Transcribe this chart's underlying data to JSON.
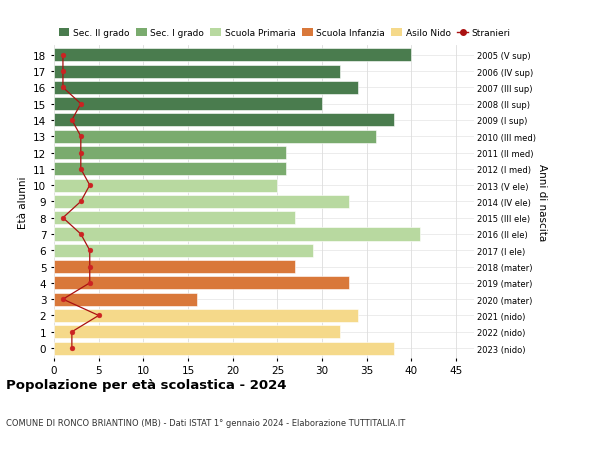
{
  "ages": [
    18,
    17,
    16,
    15,
    14,
    13,
    12,
    11,
    10,
    9,
    8,
    7,
    6,
    5,
    4,
    3,
    2,
    1,
    0
  ],
  "bar_values": [
    40,
    32,
    34,
    30,
    38,
    36,
    26,
    26,
    25,
    33,
    27,
    41,
    29,
    27,
    33,
    16,
    34,
    32,
    38
  ],
  "bar_colors": [
    "#4a7c4e",
    "#4a7c4e",
    "#4a7c4e",
    "#4a7c4e",
    "#4a7c4e",
    "#7aab6e",
    "#7aab6e",
    "#7aab6e",
    "#b8d9a0",
    "#b8d9a0",
    "#b8d9a0",
    "#b8d9a0",
    "#b8d9a0",
    "#d9783a",
    "#d9783a",
    "#d9783a",
    "#f5d98a",
    "#f5d98a",
    "#f5d98a"
  ],
  "stranieri_x": [
    1,
    1,
    1,
    3,
    2,
    3,
    3,
    3,
    4,
    3,
    1,
    3,
    4,
    4,
    4,
    1,
    5,
    2,
    2
  ],
  "right_labels": [
    "2005 (V sup)",
    "2006 (IV sup)",
    "2007 (III sup)",
    "2008 (II sup)",
    "2009 (I sup)",
    "2010 (III med)",
    "2011 (II med)",
    "2012 (I med)",
    "2013 (V ele)",
    "2014 (IV ele)",
    "2015 (III ele)",
    "2016 (II ele)",
    "2017 (I ele)",
    "2018 (mater)",
    "2019 (mater)",
    "2020 (mater)",
    "2021 (nido)",
    "2022 (nido)",
    "2023 (nido)"
  ],
  "legend_labels": [
    "Sec. II grado",
    "Sec. I grado",
    "Scuola Primaria",
    "Scuola Infanzia",
    "Asilo Nido",
    "Stranieri"
  ],
  "legend_colors": [
    "#4a7c4e",
    "#7aab6e",
    "#b8d9a0",
    "#d9783a",
    "#f5d98a",
    "#aa1111"
  ],
  "ylabel": "Età alunni",
  "ylabel_right": "Anni di nascita",
  "title": "Popolazione per età scolastica - 2024",
  "subtitle": "COMUNE DI RONCO BRIANTINO (MB) - Dati ISTAT 1° gennaio 2024 - Elaborazione TUTTITALIA.IT",
  "xlim": [
    0,
    47
  ],
  "xticks": [
    0,
    5,
    10,
    15,
    20,
    25,
    30,
    35,
    40,
    45
  ],
  "bg_color": "#ffffff",
  "grid_color": "#dddddd"
}
